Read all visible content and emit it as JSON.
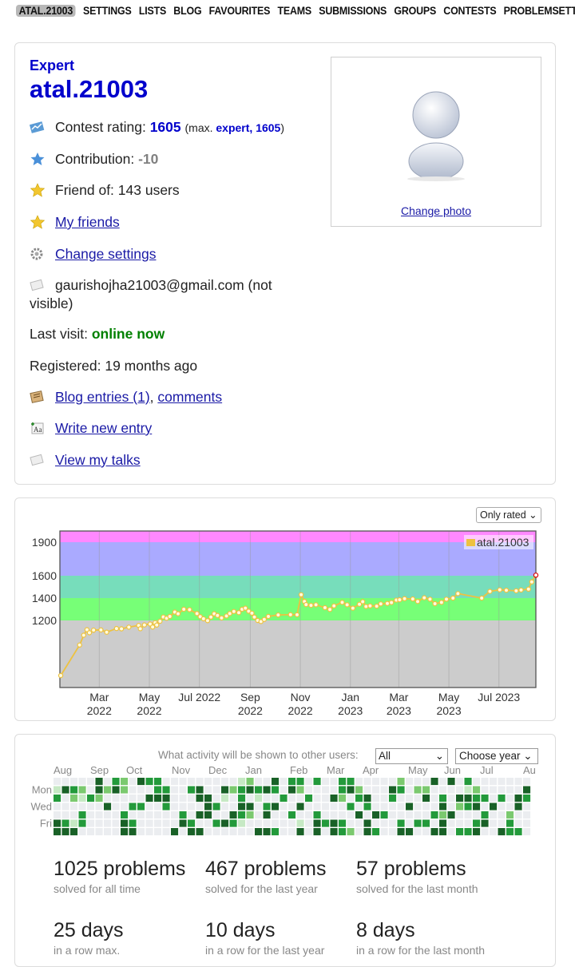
{
  "nav": {
    "items": [
      "ATAL.21003",
      "SETTINGS",
      "LISTS",
      "BLOG",
      "FAVOURITES",
      "TEAMS",
      "SUBMISSIONS",
      "GROUPS",
      "CONTESTS",
      "PROBLEMSETTING"
    ]
  },
  "profile": {
    "rank": "Expert",
    "handle": "atal.21003",
    "contest_rating_label": "Contest rating:",
    "contest_rating": "1605",
    "max_prefix": "(max.",
    "max_rank_rating": "expert, 1605",
    "max_suffix": ")",
    "contribution_label": "Contribution:",
    "contribution": "-10",
    "friend_of": "Friend of: 143 users",
    "my_friends": "My friends",
    "change_settings": "Change settings",
    "email_line1": "gaurishojha21003@gmail.com (not",
    "email_line2": "visible)",
    "last_visit_label": "Last visit:",
    "last_visit": "online now",
    "registered": "Registered: 19 months ago",
    "blog_entries": "Blog entries (1)",
    "comments": "comments",
    "write_entry": "Write new entry",
    "view_talks": "View my talks",
    "change_photo": "Change photo",
    "colors": {
      "expert": "#0000cc",
      "online": "#008000",
      "link": "#1a1aa6"
    }
  },
  "rating_panel": {
    "filter": "Only rated ⌄"
  },
  "chart_data": {
    "type": "line",
    "series": [
      {
        "name": "atal.21003",
        "color": "#edc240"
      }
    ],
    "ylim": [
      600,
      2000
    ],
    "yticks": [
      1200,
      1400,
      1600,
      1900
    ],
    "bands": [
      {
        "from": 0,
        "to": 1200,
        "color": "#cccccc"
      },
      {
        "from": 1200,
        "to": 1400,
        "color": "#77ff77"
      },
      {
        "from": 1400,
        "to": 1600,
        "color": "#77ddbb"
      },
      {
        "from": 1600,
        "to": 1900,
        "color": "#aaaaff"
      },
      {
        "from": 1900,
        "to": 2000,
        "color": "#ff88ff"
      }
    ],
    "xticks": [
      {
        "l1": "Mar",
        "l2": "2022"
      },
      {
        "l1": "May",
        "l2": "2022"
      },
      {
        "l1": "Jul 2022",
        "l2": ""
      },
      {
        "l1": "Sep",
        "l2": "2022"
      },
      {
        "l1": "Nov",
        "l2": "2022"
      },
      {
        "l1": "Jan",
        "l2": "2023"
      },
      {
        "l1": "Mar",
        "l2": "2023"
      },
      {
        "l1": "May",
        "l2": "2023"
      },
      {
        "l1": "Jul 2023",
        "l2": ""
      }
    ],
    "x_start": "2022-01-12",
    "x_end": "2023-08-15",
    "points": [
      [
        "2022-01-13",
        707
      ],
      [
        "2022-02-05",
        980
      ],
      [
        "2022-02-10",
        1068
      ],
      [
        "2022-02-14",
        1117
      ],
      [
        "2022-02-17",
        1090
      ],
      [
        "2022-02-22",
        1113
      ],
      [
        "2022-03-03",
        1115
      ],
      [
        "2022-03-10",
        1095
      ],
      [
        "2022-03-22",
        1128
      ],
      [
        "2022-03-28",
        1125
      ],
      [
        "2022-04-06",
        1140
      ],
      [
        "2022-04-18",
        1155
      ],
      [
        "2022-04-20",
        1126
      ],
      [
        "2022-04-25",
        1160
      ],
      [
        "2022-05-02",
        1168
      ],
      [
        "2022-05-05",
        1141
      ],
      [
        "2022-05-08",
        1180
      ],
      [
        "2022-05-10",
        1159
      ],
      [
        "2022-05-14",
        1193
      ],
      [
        "2022-05-18",
        1231
      ],
      [
        "2022-05-22",
        1220
      ],
      [
        "2022-05-26",
        1236
      ],
      [
        "2022-06-01",
        1275
      ],
      [
        "2022-06-05",
        1260
      ],
      [
        "2022-06-12",
        1300
      ],
      [
        "2022-06-19",
        1296
      ],
      [
        "2022-06-28",
        1262
      ],
      [
        "2022-07-02",
        1234
      ],
      [
        "2022-07-06",
        1215
      ],
      [
        "2022-07-11",
        1198
      ],
      [
        "2022-07-15",
        1230
      ],
      [
        "2022-07-19",
        1260
      ],
      [
        "2022-07-23",
        1245
      ],
      [
        "2022-07-28",
        1222
      ],
      [
        "2022-08-03",
        1240
      ],
      [
        "2022-08-07",
        1262
      ],
      [
        "2022-08-12",
        1280
      ],
      [
        "2022-08-18",
        1270
      ],
      [
        "2022-08-22",
        1300
      ],
      [
        "2022-08-26",
        1310
      ],
      [
        "2022-08-30",
        1283
      ],
      [
        "2022-09-03",
        1265
      ],
      [
        "2022-09-06",
        1230
      ],
      [
        "2022-09-10",
        1200
      ],
      [
        "2022-09-14",
        1190
      ],
      [
        "2022-09-18",
        1209
      ],
      [
        "2022-09-23",
        1236
      ],
      [
        "2022-10-05",
        1249
      ],
      [
        "2022-10-20",
        1252
      ],
      [
        "2022-10-28",
        1251
      ],
      [
        "2022-11-02",
        1430
      ],
      [
        "2022-11-06",
        1370
      ],
      [
        "2022-11-08",
        1342
      ],
      [
        "2022-11-14",
        1335
      ],
      [
        "2022-11-20",
        1340
      ],
      [
        "2022-12-01",
        1314
      ],
      [
        "2022-12-07",
        1298
      ],
      [
        "2022-12-12",
        1330
      ],
      [
        "2022-12-22",
        1362
      ],
      [
        "2022-12-28",
        1340
      ],
      [
        "2023-01-04",
        1310
      ],
      [
        "2023-01-12",
        1345
      ],
      [
        "2023-01-16",
        1368
      ],
      [
        "2023-01-20",
        1325
      ],
      [
        "2023-01-25",
        1330
      ],
      [
        "2023-02-02",
        1328
      ],
      [
        "2023-02-07",
        1348
      ],
      [
        "2023-02-15",
        1352
      ],
      [
        "2023-02-20",
        1360
      ],
      [
        "2023-02-26",
        1382
      ],
      [
        "2023-03-02",
        1385
      ],
      [
        "2023-03-08",
        1395
      ],
      [
        "2023-03-18",
        1392
      ],
      [
        "2023-03-24",
        1370
      ],
      [
        "2023-04-01",
        1403
      ],
      [
        "2023-04-08",
        1390
      ],
      [
        "2023-04-14",
        1350
      ],
      [
        "2023-04-22",
        1362
      ],
      [
        "2023-04-28",
        1390
      ],
      [
        "2023-05-06",
        1400
      ],
      [
        "2023-05-12",
        1440
      ],
      [
        "2023-06-10",
        1400
      ],
      [
        "2023-06-20",
        1460
      ],
      [
        "2023-07-02",
        1474
      ],
      [
        "2023-07-10",
        1470
      ],
      [
        "2023-07-22",
        1465
      ],
      [
        "2023-07-28",
        1472
      ],
      [
        "2023-08-06",
        1480
      ],
      [
        "2023-08-10",
        1545
      ],
      [
        "2023-08-15",
        1605
      ]
    ]
  },
  "activity": {
    "label": "What activity will be shown to other users:",
    "filter": "All",
    "filter_arrow": "⌄",
    "year": "Choose year ⌄",
    "months": [
      "Aug",
      "Sep",
      "Oct",
      "Nov",
      "Dec",
      "Jan",
      "Feb",
      "Mar",
      "Apr",
      "May",
      "Jun",
      "Jul",
      "Au"
    ],
    "days": [
      "Mon",
      "Wed",
      "Fri"
    ],
    "palette": [
      "#ebedf0",
      "#c6e9c4",
      "#7bc96f",
      "#239a3b",
      "#196127"
    ],
    "cells": [
      "0000040320433000000000120040330300330000020004040300000000003000000000000000000000000",
      "1432042420003300340042343430420000342000430220000120000042030000000302001324200000000",
      "3021320000044400044010301003003004203400300040304433030430000300003300043020010000000",
      "0000004003300300004300440340040000030300004000402340400404230002002030040003040300002",
      "0003000030000003044004320400300300004043000003240003002000020000400004000033400034000",
      "4313000043000004300343100000010434300400030330400034003000003030043030040003040404000",
      "4440000044000040440000004430040404320430044004403340043304043040040304004043440004000"
    ]
  },
  "stats": [
    {
      "num": "1025 problems",
      "desc": "solved for all time"
    },
    {
      "num": "467 problems",
      "desc": "solved for the last year"
    },
    {
      "num": "57 problems",
      "desc": "solved for the last month"
    },
    {
      "num": "25 days",
      "desc": "in a row max."
    },
    {
      "num": "10 days",
      "desc": "in a row for the last year"
    },
    {
      "num": "8 days",
      "desc": "in a row for the last month"
    }
  ]
}
